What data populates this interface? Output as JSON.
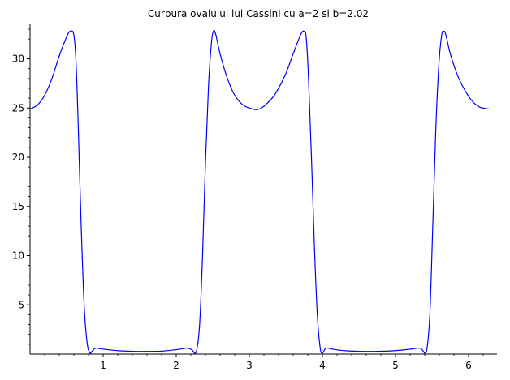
{
  "chart_data": {
    "type": "line",
    "title": "Curbura ovalului lui Cassini cu a=2 si b=2.02",
    "xlabel": "",
    "ylabel": "",
    "xlim": [
      0,
      6.3
    ],
    "ylim": [
      0,
      33.5
    ],
    "xticks": [
      1,
      2,
      3,
      4,
      5,
      6
    ],
    "xtick_labels": [
      "1",
      "2",
      "3",
      "4",
      "5",
      "6"
    ],
    "yticks": [
      5,
      10,
      15,
      20,
      25,
      30
    ],
    "ytick_labels": [
      "5",
      "10",
      "15",
      "20",
      "25",
      "30"
    ],
    "x_minor_step": 0.2,
    "y_minor_step": 1,
    "grid": false,
    "series": [
      {
        "color": "#0000ff",
        "x": [
          0,
          0.1,
          0.2,
          0.3,
          0.4,
          0.5,
          0.55,
          0.6,
          0.63,
          0.66,
          0.7,
          0.74,
          0.78,
          0.82,
          0.85,
          0.9,
          1.0,
          1.2,
          1.4,
          1.57,
          1.8,
          2.0,
          2.15,
          2.22,
          2.25,
          2.28,
          2.32,
          2.36,
          2.4,
          2.44,
          2.48,
          2.51,
          2.54,
          2.6,
          2.7,
          2.8,
          2.9,
          3.0,
          3.14,
          3.3,
          3.4,
          3.5,
          3.6,
          3.7,
          3.75,
          3.78,
          3.81,
          3.85,
          3.89,
          3.93,
          3.97,
          4.0,
          4.05,
          4.14,
          4.3,
          4.5,
          4.71,
          5.0,
          5.2,
          5.33,
          5.38,
          5.4,
          5.43,
          5.47,
          5.51,
          5.55,
          5.59,
          5.63,
          5.66,
          5.69,
          5.75,
          5.85,
          5.95,
          6.05,
          6.15,
          6.28
        ],
        "y": [
          24.9,
          25.3,
          26.3,
          28.0,
          30.3,
          32.2,
          32.8,
          32.4,
          29.5,
          23.0,
          13.0,
          5.0,
          1.2,
          0.1,
          0.3,
          0.6,
          0.5,
          0.35,
          0.28,
          0.27,
          0.3,
          0.45,
          0.6,
          0.4,
          0.1,
          0.4,
          3.0,
          10.0,
          19.5,
          27.0,
          31.5,
          32.8,
          32.5,
          30.5,
          28.0,
          26.3,
          25.4,
          25.0,
          24.9,
          25.9,
          27.0,
          28.5,
          30.5,
          32.4,
          32.8,
          32.0,
          28.0,
          20.0,
          11.0,
          4.0,
          0.6,
          0.1,
          0.6,
          0.5,
          0.35,
          0.28,
          0.27,
          0.35,
          0.5,
          0.6,
          0.3,
          0.1,
          0.5,
          4.0,
          13.0,
          22.5,
          29.0,
          32.3,
          32.8,
          32.4,
          30.5,
          28.3,
          26.8,
          25.7,
          25.1,
          24.9
        ]
      }
    ]
  }
}
